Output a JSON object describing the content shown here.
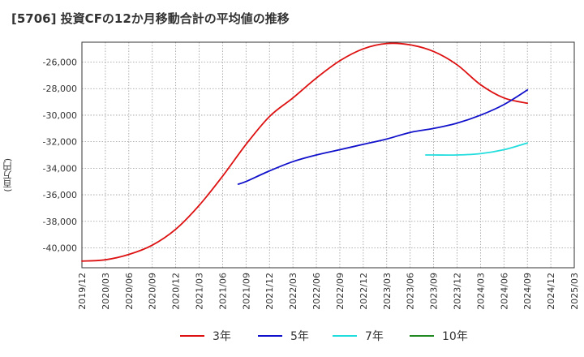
{
  "chart_data": {
    "type": "line",
    "title": "[5706]  投資CFの12か月移動合計の平均値の推移",
    "ylabel": "(百万円)",
    "xlabel": "",
    "ylim": [
      -41500,
      -24500
    ],
    "y_ticks": [
      -40000,
      -38000,
      -36000,
      -34000,
      -32000,
      -30000,
      -28000,
      -26000
    ],
    "y_tick_labels": [
      "-40,000",
      "-38,000",
      "-36,000",
      "-34,000",
      "-32,000",
      "-30,000",
      "-28,000",
      "-26,000"
    ],
    "x_ticks": [
      "2019/12",
      "2020/03",
      "2020/06",
      "2020/09",
      "2020/12",
      "2021/03",
      "2021/06",
      "2021/09",
      "2021/12",
      "2022/03",
      "2022/06",
      "2022/09",
      "2022/12",
      "2023/03",
      "2023/06",
      "2023/09",
      "2023/12",
      "2024/03",
      "2024/06",
      "2024/09",
      "2024/12",
      "2025/03"
    ],
    "grid": true,
    "legend_position": "bottom",
    "series": [
      {
        "name": "3年",
        "color": "#dd1111",
        "points": [
          [
            "2019/12",
            -41000
          ],
          [
            "2020/03",
            -40900
          ],
          [
            "2020/06",
            -40500
          ],
          [
            "2020/09",
            -39800
          ],
          [
            "2020/12",
            -38600
          ],
          [
            "2021/03",
            -36800
          ],
          [
            "2021/06",
            -34600
          ],
          [
            "2021/09",
            -32200
          ],
          [
            "2021/12",
            -30100
          ],
          [
            "2022/03",
            -28700
          ],
          [
            "2022/06",
            -27200
          ],
          [
            "2022/09",
            -25900
          ],
          [
            "2022/12",
            -25000
          ],
          [
            "2023/03",
            -24600
          ],
          [
            "2023/06",
            -24700
          ],
          [
            "2023/09",
            -25200
          ],
          [
            "2023/12",
            -26200
          ],
          [
            "2024/03",
            -27700
          ],
          [
            "2024/06",
            -28700
          ],
          [
            "2024/09",
            -29100
          ]
        ]
      },
      {
        "name": "5年",
        "color": "#1111cc",
        "points": [
          [
            "2021/08",
            -35200
          ],
          [
            "2021/09",
            -35000
          ],
          [
            "2021/12",
            -34200
          ],
          [
            "2022/03",
            -33500
          ],
          [
            "2022/06",
            -33000
          ],
          [
            "2022/09",
            -32600
          ],
          [
            "2022/12",
            -32200
          ],
          [
            "2023/03",
            -31800
          ],
          [
            "2023/06",
            -31300
          ],
          [
            "2023/09",
            -31000
          ],
          [
            "2023/12",
            -30600
          ],
          [
            "2024/03",
            -30000
          ],
          [
            "2024/06",
            -29200
          ],
          [
            "2024/09",
            -28100
          ]
        ]
      },
      {
        "name": "7年",
        "color": "#22dddd",
        "points": [
          [
            "2023/08",
            -33000
          ],
          [
            "2023/09",
            -33000
          ],
          [
            "2023/12",
            -33000
          ],
          [
            "2024/03",
            -32900
          ],
          [
            "2024/06",
            -32600
          ],
          [
            "2024/09",
            -32100
          ]
        ]
      },
      {
        "name": "10年",
        "color": "#228822",
        "points": []
      }
    ]
  }
}
